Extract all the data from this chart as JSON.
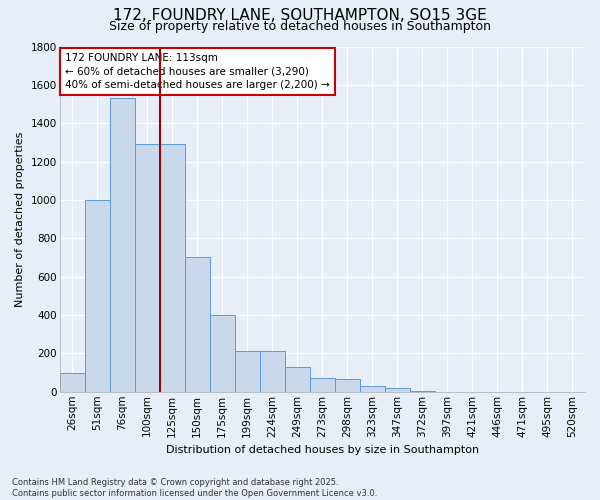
{
  "title": "172, FOUNDRY LANE, SOUTHAMPTON, SO15 3GE",
  "subtitle": "Size of property relative to detached houses in Southampton",
  "xlabel": "Distribution of detached houses by size in Southampton",
  "ylabel": "Number of detached properties",
  "categories": [
    "26sqm",
    "51sqm",
    "76sqm",
    "100sqm",
    "125sqm",
    "150sqm",
    "175sqm",
    "199sqm",
    "224sqm",
    "249sqm",
    "273sqm",
    "298sqm",
    "323sqm",
    "347sqm",
    "372sqm",
    "397sqm",
    "421sqm",
    "446sqm",
    "471sqm",
    "495sqm",
    "520sqm"
  ],
  "values": [
    100,
    1000,
    1530,
    1290,
    1290,
    700,
    400,
    215,
    215,
    130,
    70,
    65,
    30,
    20,
    5,
    0,
    0,
    0,
    0,
    0,
    0
  ],
  "bar_color": "#c9d9eb",
  "bar_edge_color": "#5b9bd5",
  "vline_color": "#aa0000",
  "vline_pos": 3.5,
  "annotation_text": "172 FOUNDRY LANE: 113sqm\n← 60% of detached houses are smaller (3,290)\n40% of semi-detached houses are larger (2,200) →",
  "annotation_box_color": "#cc0000",
  "annotation_box_bg": "#ffffff",
  "footer_line1": "Contains HM Land Registry data © Crown copyright and database right 2025.",
  "footer_line2": "Contains public sector information licensed under the Open Government Licence v3.0.",
  "ylim": [
    0,
    1800
  ],
  "yticks": [
    0,
    200,
    400,
    600,
    800,
    1000,
    1200,
    1400,
    1600,
    1800
  ],
  "background_color": "#e8eef7",
  "grid_color": "#ffffff",
  "title_fontsize": 11,
  "subtitle_fontsize": 9,
  "xlabel_fontsize": 8,
  "ylabel_fontsize": 8,
  "tick_fontsize": 7.5,
  "footer_fontsize": 6,
  "annotation_fontsize": 7.5
}
